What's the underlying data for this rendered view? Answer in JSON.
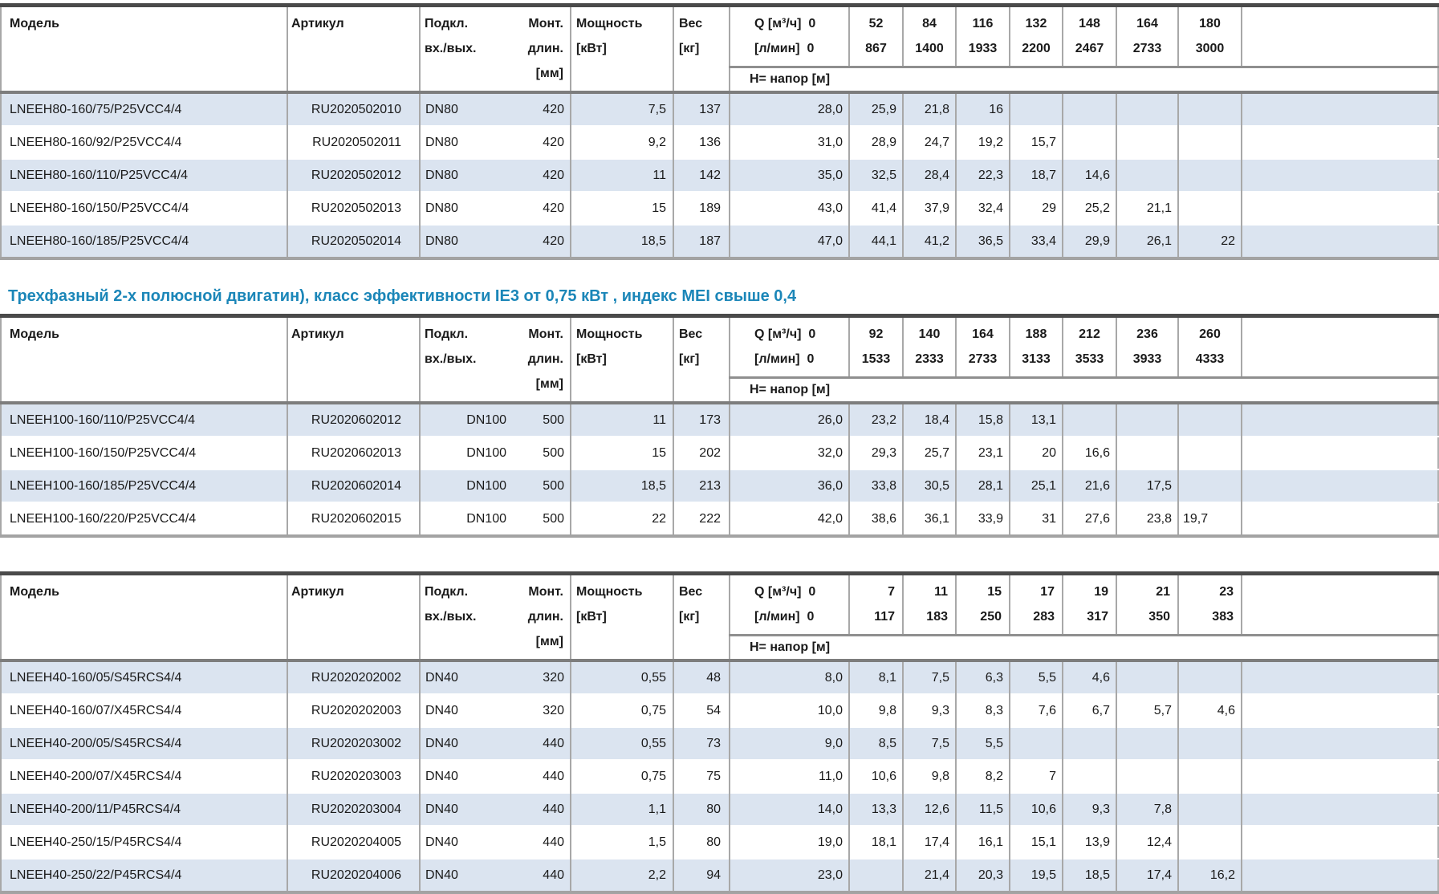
{
  "section_title": "Трехфазный 2-х полюсной двигатин), класс эффективности IE3 от 0,75 кВт ,  индекс MEI свыше 0,4",
  "title_color": "#1b86b8",
  "stripe_color": "#dbe4f0",
  "labels": {
    "model": "Модель",
    "article": "Артикул",
    "conn1": "Подкл.",
    "conn2": "вх./вых.",
    "mount1": "Монт.",
    "mount2": "длин.",
    "mount3": "[мм]",
    "power1": "Мощность",
    "power2": "[кВт]",
    "weight1": "Вес",
    "weight2": "[кг]",
    "q1": "Q [м³/ч]  0",
    "q2": "[л/мин]  0",
    "head": "H= напор [м]"
  },
  "tables": [
    {
      "name": "LNEEH80",
      "q_m3h": [
        "52",
        "84",
        "116",
        "132",
        "148",
        "164",
        "180"
      ],
      "q_lmin": [
        "867",
        "1400",
        "1933",
        "2200",
        "2467",
        "2733",
        "3000"
      ],
      "rows": [
        {
          "model": "LNEEH80-160/75/P25VCC4/4",
          "article": "RU2020502010",
          "conn": "DN80",
          "mount": "420",
          "power": "7,5",
          "weight": "137",
          "heads": [
            "28,0",
            "25,9",
            "21,8",
            "16",
            "",
            "",
            "",
            ""
          ]
        },
        {
          "model": "LNEEH80-160/92/P25VCC4/4",
          "article": "RU2020502011",
          "conn": "DN80",
          "mount": "420",
          "power": "9,2",
          "weight": "136",
          "heads": [
            "31,0",
            "28,9",
            "24,7",
            "19,2",
            "15,7",
            "",
            "",
            ""
          ]
        },
        {
          "model": "LNEEH80-160/110/P25VCC4/4",
          "article": "RU2020502012",
          "conn": "DN80",
          "mount": "420",
          "power": "11",
          "weight": "142",
          "heads": [
            "35,0",
            "32,5",
            "28,4",
            "22,3",
            "18,7",
            "14,6",
            "",
            ""
          ]
        },
        {
          "model": "LNEEH80-160/150/P25VCC4/4",
          "article": "RU2020502013",
          "conn": "DN80",
          "mount": "420",
          "power": "15",
          "weight": "189",
          "heads": [
            "43,0",
            "41,4",
            "37,9",
            "32,4",
            "29",
            "25,2",
            "21,1",
            ""
          ]
        },
        {
          "model": "LNEEH80-160/185/P25VCC4/4",
          "article": "RU2020502014",
          "conn": "DN80",
          "mount": "420",
          "power": "18,5",
          "weight": "187",
          "heads": [
            "47,0",
            "44,1",
            "41,2",
            "36,5",
            "33,4",
            "29,9",
            "26,1",
            "22"
          ]
        }
      ]
    },
    {
      "name": "LNEEH100",
      "q_m3h": [
        "92",
        "140",
        "164",
        "188",
        "212",
        "236",
        "260"
      ],
      "q_lmin": [
        "1533",
        "2333",
        "2733",
        "3133",
        "3533",
        "3933",
        "4333"
      ],
      "rows": [
        {
          "model": "LNEEH100-160/110/P25VCC4/4",
          "article": "RU2020602012",
          "conn": "DN100",
          "mount": "500",
          "power": "11",
          "weight": "173",
          "heads": [
            "26,0",
            "23,2",
            "18,4",
            "15,8",
            "13,1",
            "",
            "",
            ""
          ]
        },
        {
          "model": "LNEEH100-160/150/P25VCC4/4",
          "article": "RU2020602013",
          "conn": "DN100",
          "mount": "500",
          "power": "15",
          "weight": "202",
          "heads": [
            "32,0",
            "29,3",
            "25,7",
            "23,1",
            "20",
            "16,6",
            "",
            ""
          ]
        },
        {
          "model": "LNEEH100-160/185/P25VCC4/4",
          "article": "RU2020602014",
          "conn": "DN100",
          "mount": "500",
          "power": "18,5",
          "weight": "213",
          "heads": [
            "36,0",
            "33,8",
            "30,5",
            "28,1",
            "25,1",
            "21,6",
            "17,5",
            ""
          ]
        },
        {
          "model": "LNEEH100-160/220/P25VCC4/4",
          "article": "RU2020602015",
          "conn": "DN100",
          "mount": "500",
          "power": "22",
          "weight": "222",
          "heads": [
            "42,0",
            "38,6",
            "36,1",
            "33,9",
            "31",
            "27,6",
            "23,8",
            "19,7"
          ]
        }
      ]
    },
    {
      "name": "LNEEH40",
      "q_m3h": [
        "7",
        "11",
        "15",
        "17",
        "19",
        "21",
        "23"
      ],
      "q_lmin": [
        "117",
        "183",
        "250",
        "283",
        "317",
        "350",
        "383"
      ],
      "rows": [
        {
          "model": "LNEEH40-160/05/S45RCS4/4",
          "article": "RU2020202002",
          "conn": "DN40",
          "mount": "320",
          "power": "0,55",
          "weight": "48",
          "heads": [
            "8,0",
            "8,1",
            "7,5",
            "6,3",
            "5,5",
            "4,6",
            "",
            ""
          ]
        },
        {
          "model": "LNEEH40-160/07/X45RCS4/4",
          "article": "RU2020202003",
          "conn": "DN40",
          "mount": "320",
          "power": "0,75",
          "weight": "54",
          "heads": [
            "10,0",
            "9,8",
            "9,3",
            "8,3",
            "7,6",
            "6,7",
            "5,7",
            "4,6"
          ]
        },
        {
          "model": "LNEEH40-200/05/S45RCS4/4",
          "article": "RU2020203002",
          "conn": "DN40",
          "mount": "440",
          "power": "0,55",
          "weight": "73",
          "heads": [
            "9,0",
            "8,5",
            "7,5",
            "5,5",
            "",
            "",
            "",
            ""
          ]
        },
        {
          "model": "LNEEH40-200/07/X45RCS4/4",
          "article": "RU2020203003",
          "conn": "DN40",
          "mount": "440",
          "power": "0,75",
          "weight": "75",
          "heads": [
            "11,0",
            "10,6",
            "9,8",
            "8,2",
            "7",
            "",
            "",
            ""
          ]
        },
        {
          "model": "LNEEH40-200/11/P45RCS4/4",
          "article": "RU2020203004",
          "conn": "DN40",
          "mount": "440",
          "power": "1,1",
          "weight": "80",
          "heads": [
            "14,0",
            "13,3",
            "12,6",
            "11,5",
            "10,6",
            "9,3",
            "7,8",
            ""
          ]
        },
        {
          "model": "LNEEH40-250/15/P45RCS4/4",
          "article": "RU2020204005",
          "conn": "DN40",
          "mount": "440",
          "power": "1,5",
          "weight": "80",
          "heads": [
            "19,0",
            "18,1",
            "17,4",
            "16,1",
            "15,1",
            "13,9",
            "12,4",
            ""
          ]
        },
        {
          "model": "LNEEH40-250/22/P45RCS4/4",
          "article": "RU2020204006",
          "conn": "DN40",
          "mount": "440",
          "power": "2,2",
          "weight": "94",
          "heads": [
            "23,0",
            "",
            "21,4",
            "20,3",
            "19,5",
            "18,5",
            "17,4",
            "16,2"
          ]
        }
      ]
    }
  ]
}
